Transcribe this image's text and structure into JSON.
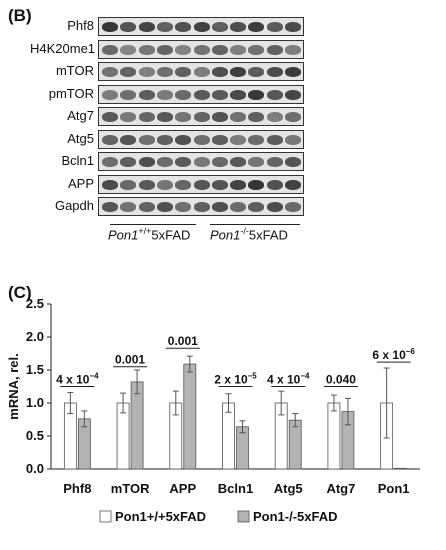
{
  "panel_b_label": "(B)",
  "panel_c_label": "(C)",
  "blot": {
    "rows": [
      "Phf8",
      "H4K20me1",
      "mTOR",
      "pmTOR",
      "Atg7",
      "Atg5",
      "Bcln1",
      "APP",
      "Gapdh"
    ],
    "group1": {
      "gene": "Pon1",
      "sup": "+/+",
      "suffix": "5xFAD"
    },
    "group2": {
      "gene": "Pon1",
      "sup": "-/-",
      "suffix": "5xFAD"
    }
  },
  "chart_data": {
    "type": "bar",
    "categories": [
      "Phf8",
      "mTOR",
      "APP",
      "Bcln1",
      "Atg5",
      "Atg7",
      "Pon1"
    ],
    "ylabel": "mRNA, rel.",
    "ylim": [
      0,
      2.5
    ],
    "yticks": [
      "0.0",
      "0.5",
      "1.0",
      "1.5",
      "2.0",
      "2.5"
    ],
    "series": [
      {
        "name": "Pon1+/+5xFAD",
        "color": "#ffffff",
        "values": [
          1.0,
          1.0,
          1.0,
          1.0,
          1.0,
          1.0,
          1.0
        ],
        "errors": [
          0.16,
          0.15,
          0.18,
          0.14,
          0.18,
          0.12,
          0.53
        ]
      },
      {
        "name": "Pon1-/-5xFAD",
        "color": "#b3b3b3",
        "values": [
          0.76,
          1.32,
          1.59,
          0.64,
          0.74,
          0.87,
          0.01
        ],
        "errors": [
          0.12,
          0.18,
          0.12,
          0.09,
          0.1,
          0.2,
          0.0
        ]
      }
    ],
    "pvalues": [
      {
        "base": "4 x 10",
        "exp": "−4"
      },
      {
        "base": "0.001",
        "exp": ""
      },
      {
        "base": "0.001",
        "exp": ""
      },
      {
        "base": "2 x 10",
        "exp": "−5"
      },
      {
        "base": "4 x 10",
        "exp": "−4"
      },
      {
        "base": "0.040",
        "exp": ""
      },
      {
        "base": "6 x 10",
        "exp": "−6"
      }
    ],
    "pvalue_line_y": [
      1.25,
      1.55,
      1.83,
      1.25,
      1.25,
      1.25,
      1.62
    ]
  }
}
